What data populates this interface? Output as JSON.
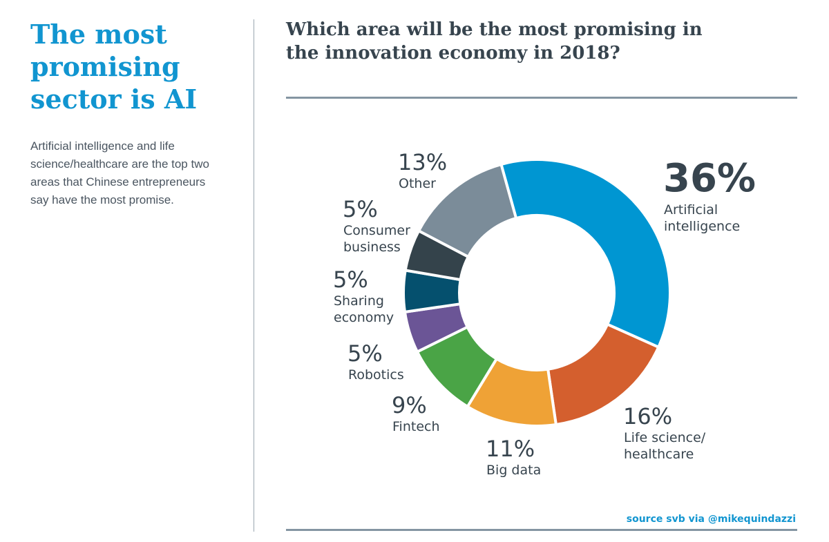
{
  "headline": "The most promising sector is AI",
  "summary": "Artificial intelligence and life science/healthcare are the top two areas that Chinese entrepreneurs say have the most promise.",
  "source": "source svb via @mikequindazzi",
  "chart_data": {
    "type": "pie",
    "variant": "donut",
    "title": "Which area will be the most promising in the innovation economy in 2018?",
    "unit": "%",
    "slices": [
      {
        "label": [
          "Artificial",
          "intelligence"
        ],
        "value": 36,
        "value_label": "36%",
        "color": "#0096d2"
      },
      {
        "label": [
          "Life science/",
          "healthcare"
        ],
        "value": 16,
        "value_label": "16%",
        "color": "#d45f2e"
      },
      {
        "label": [
          "Big data"
        ],
        "value": 11,
        "value_label": "11%",
        "color": "#efa236"
      },
      {
        "label": [
          "Fintech"
        ],
        "value": 9,
        "value_label": "9%",
        "color": "#4aa446"
      },
      {
        "label": [
          "Robotics"
        ],
        "value": 5,
        "value_label": "5%",
        "color": "#6b5596"
      },
      {
        "label": [
          "Sharing",
          "economy"
        ],
        "value": 5,
        "value_label": "5%",
        "color": "#05506e"
      },
      {
        "label": [
          "Consumer",
          "business"
        ],
        "value": 5,
        "value_label": "5%",
        "color": "#34434b"
      },
      {
        "label": [
          "Other"
        ],
        "value": 13,
        "value_label": "13%",
        "color": "#7b8c99"
      }
    ]
  }
}
